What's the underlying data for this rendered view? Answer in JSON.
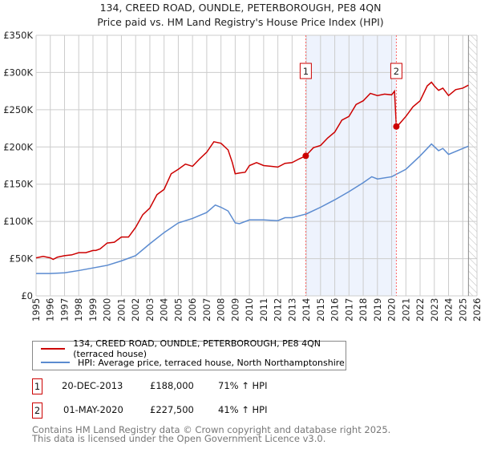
{
  "chart_data": {
    "type": "line",
    "title": "134, CREED ROAD, OUNDLE, PETERBOROUGH, PE8 4QN",
    "subtitle": "Price paid vs. HM Land Registry's House Price Index (HPI)",
    "xlim": [
      1995,
      2026
    ],
    "ylim": [
      0,
      350000
    ],
    "yticks": [
      {
        "v": 0,
        "label": "£0"
      },
      {
        "v": 50000,
        "label": "£50K"
      },
      {
        "v": 100000,
        "label": "£100K"
      },
      {
        "v": 150000,
        "label": "£150K"
      },
      {
        "v": 200000,
        "label": "£200K"
      },
      {
        "v": 250000,
        "label": "£250K"
      },
      {
        "v": 300000,
        "label": "£300K"
      },
      {
        "v": 350000,
        "label": "£350K"
      }
    ],
    "xticks": [
      "1995",
      "1996",
      "1997",
      "1998",
      "1999",
      "2000",
      "2001",
      "2002",
      "2003",
      "2004",
      "2005",
      "2006",
      "2007",
      "2008",
      "2009",
      "2010",
      "2011",
      "2012",
      "2013",
      "2014",
      "2015",
      "2016",
      "2017",
      "2018",
      "2019",
      "2020",
      "2021",
      "2022",
      "2023",
      "2024",
      "2025",
      "2026"
    ],
    "grid": true,
    "series": [
      {
        "name": "134, CREED ROAD, OUNDLE, PETERBOROUGH, PE8 4QN (terraced house)",
        "color": "#cc0000",
        "x": [
          1995,
          1995.5,
          1996,
          1996.2,
          1996.5,
          1997,
          1997.5,
          1998,
          1998.5,
          1999,
          1999.2,
          1999.5,
          2000,
          2000.5,
          2001,
          2001.5,
          2002,
          2002.5,
          2003,
          2003.5,
          2004,
          2004.5,
          2005,
          2005.5,
          2006,
          2006.5,
          2007,
          2007.5,
          2008,
          2008.5,
          2008.8,
          2009,
          2009.3,
          2009.7,
          2010,
          2010.5,
          2011,
          2011.5,
          2012,
          2012.5,
          2013,
          2013.5,
          2013.96,
          2014.5,
          2015,
          2015.5,
          2016,
          2016.5,
          2017,
          2017.5,
          2018,
          2018.5,
          2019,
          2019.5,
          2020,
          2020.2,
          2020.33,
          2020.5,
          2021,
          2021.5,
          2022,
          2022.5,
          2022.8,
          2023,
          2023.3,
          2023.6,
          2024,
          2024.5,
          2025,
          2025.4
        ],
        "y": [
          51000,
          53000,
          51000,
          49000,
          52000,
          54000,
          55000,
          58000,
          58000,
          61000,
          61000,
          63000,
          71000,
          72000,
          79000,
          79000,
          92000,
          109000,
          118000,
          136000,
          143000,
          164000,
          170000,
          177000,
          174000,
          184000,
          193000,
          207000,
          205000,
          196000,
          179000,
          164000,
          165000,
          166000,
          175000,
          179000,
          175000,
          174000,
          173000,
          178000,
          179000,
          184000,
          188000,
          199000,
          202000,
          212000,
          220000,
          236000,
          241000,
          257000,
          262000,
          272000,
          269000,
          271000,
          270000,
          275000,
          227500,
          230000,
          241000,
          254000,
          262000,
          282000,
          287000,
          282000,
          276000,
          279000,
          269000,
          277000,
          279000,
          283000
        ]
      },
      {
        "name": "HPI: Average price, terraced house, North Northamptonshire",
        "color": "#5b8bd0",
        "x": [
          1995,
          1996,
          1997,
          1998,
          1999,
          2000,
          2001,
          2002,
          2003,
          2004,
          2005,
          2006,
          2007,
          2007.6,
          2008,
          2008.5,
          2009,
          2009.3,
          2010,
          2011,
          2012,
          2012.5,
          2013,
          2014,
          2015,
          2016,
          2017,
          2018,
          2018.6,
          2019,
          2020,
          2021,
          2022,
          2022.8,
          2023.3,
          2023.6,
          2024,
          2025,
          2025.4
        ],
        "y": [
          30000,
          30000,
          31000,
          34000,
          37500,
          41000,
          47000,
          54000,
          70000,
          85000,
          98000,
          104000,
          112000,
          122000,
          119000,
          114000,
          98000,
          97000,
          102000,
          102000,
          101000,
          105000,
          105000,
          110000,
          119000,
          129000,
          140000,
          152000,
          160000,
          157000,
          160000,
          170000,
          188000,
          204000,
          195000,
          198000,
          190000,
          198000,
          201000
        ]
      }
    ],
    "sales": [
      {
        "id": "1",
        "x": 2013.96,
        "date": "20-DEC-2013",
        "price": 188000,
        "price_label": "£188,000",
        "hpi": "71% ↑ HPI"
      },
      {
        "id": "2",
        "x": 2020.33,
        "date": "01-MAY-2020",
        "price": 227500,
        "price_label": "£227,500",
        "hpi": "41% ↑ HPI"
      }
    ],
    "shaded_range": [
      2013.96,
      2020.33
    ],
    "forecast_from": 2025.4,
    "legend_position": "below"
  },
  "footer": {
    "line1": "Contains HM Land Registry data © Crown copyright and database right 2025.",
    "line2": "This data is licensed under the Open Government Licence v3.0."
  }
}
